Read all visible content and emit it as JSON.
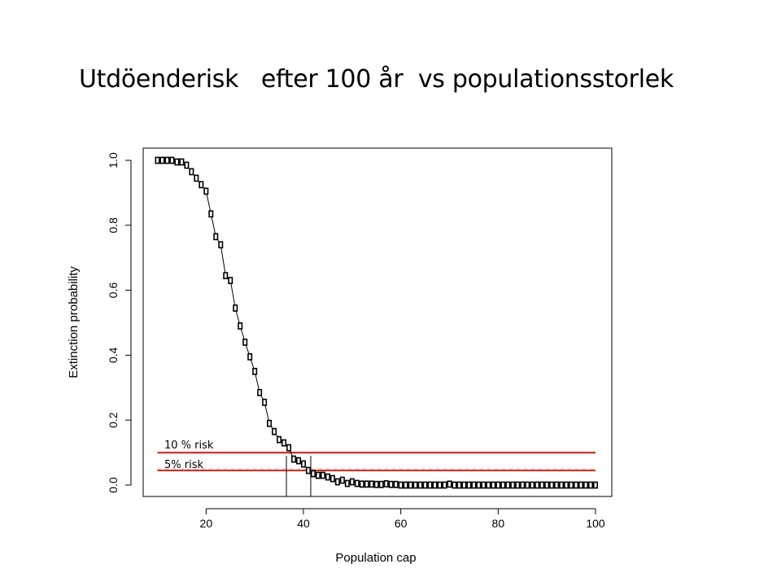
{
  "slide": {
    "title": "Utdöenderisk   efter 100 år  vs populationsstorlek"
  },
  "chart_data": {
    "type": "scatter",
    "title": "",
    "xlabel": "Population cap",
    "ylabel": "Extinction probability",
    "xlim": [
      10,
      100
    ],
    "ylim": [
      0,
      1
    ],
    "xticks": [
      "20",
      "40",
      "60",
      "80",
      "100"
    ],
    "yticks": [
      "0.0",
      "0.2",
      "0.4",
      "0.6",
      "0.8",
      "1.0"
    ],
    "grid": false,
    "x": [
      10,
      11,
      12,
      13,
      14,
      15,
      16,
      17,
      18,
      19,
      20,
      21,
      22,
      23,
      24,
      25,
      26,
      27,
      28,
      29,
      30,
      31,
      32,
      33,
      34,
      35,
      36,
      37,
      38,
      39,
      40,
      41,
      42,
      43,
      44,
      45,
      46,
      47,
      48,
      49,
      50,
      51,
      52,
      53,
      54,
      55,
      56,
      57,
      58,
      59,
      60,
      61,
      62,
      63,
      64,
      65,
      66,
      67,
      68,
      69,
      70,
      71,
      72,
      73,
      74,
      75,
      76,
      77,
      78,
      79,
      80,
      81,
      82,
      83,
      84,
      85,
      86,
      87,
      88,
      89,
      90,
      91,
      92,
      93,
      94,
      95,
      96,
      97,
      98,
      99,
      100
    ],
    "y": [
      1.0,
      1.0,
      1.0,
      1.0,
      0.995,
      0.995,
      0.985,
      0.965,
      0.945,
      0.925,
      0.905,
      0.835,
      0.765,
      0.74,
      0.645,
      0.63,
      0.545,
      0.49,
      0.44,
      0.395,
      0.35,
      0.285,
      0.255,
      0.19,
      0.165,
      0.14,
      0.13,
      0.115,
      0.08,
      0.075,
      0.065,
      0.045,
      0.035,
      0.03,
      0.03,
      0.025,
      0.02,
      0.01,
      0.015,
      0.005,
      0.01,
      0.005,
      0.003,
      0.003,
      0.003,
      0.002,
      0.002,
      0.004,
      0.002,
      0.002,
      0.0,
      0.0,
      0.0,
      0.0,
      0.0,
      0.0,
      0.0,
      0.0,
      0.0,
      0.0,
      0.003,
      0.0,
      0.0,
      0.0,
      0.0,
      0.0,
      0.0,
      0.0,
      0.0,
      0.0,
      0.0,
      0.0,
      0.0,
      0.0,
      0.0,
      0.0,
      0.0,
      0.0,
      0.0,
      0.0,
      0.0,
      0.0,
      0.0,
      0.0,
      0.0,
      0.0,
      0.0,
      0.0,
      0.0,
      0.0,
      0.0
    ],
    "fit_line_color": "#000000",
    "risk_lines": [
      {
        "label": "10 %  risk",
        "y": 0.1,
        "x_start": 10,
        "x_end": 100,
        "color": "#c0392b",
        "dashed_y": null
      },
      {
        "label": "5% risk",
        "y": 0.045,
        "x_start": 10,
        "x_end": 100,
        "color": "#c0392b",
        "dashed_y": 0.05
      }
    ],
    "vertical_markers": [
      36.5,
      41.5
    ]
  }
}
